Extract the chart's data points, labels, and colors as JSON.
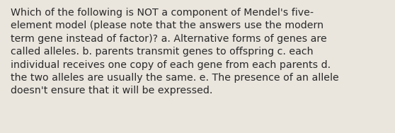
{
  "text_lines": [
    "Which of the following is NOT a component of Mendel's five-",
    "element model (please note that the answers use the modern",
    "term gene instead of factor)? a. Alternative forms of genes are",
    "called alleles. b. parents transmit genes to offspring c. each",
    "individual receives one copy of each gene from each parents d.",
    "the two alleles are usually the same. e. The presence of an allele",
    "doesn't ensure that it will be expressed."
  ],
  "background_color": "#eae6de",
  "text_color": "#2a2a2a",
  "font_size": 10.2,
  "font_family": "DejaVu Sans",
  "fig_width": 5.58,
  "fig_height": 1.88,
  "dpi": 100,
  "linespacing": 1.4
}
